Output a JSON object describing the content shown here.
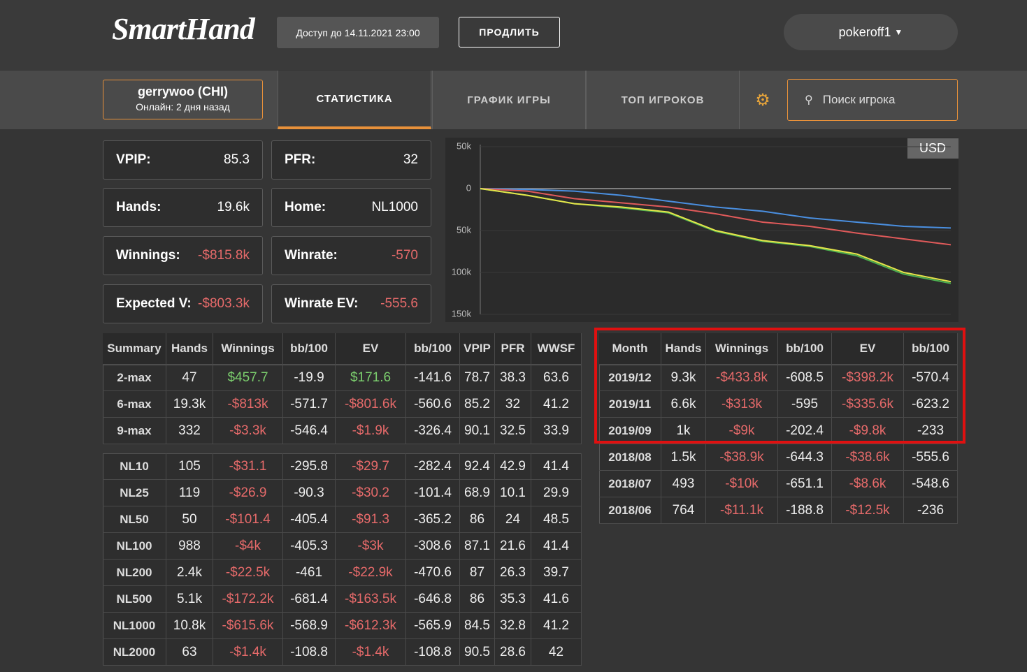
{
  "header": {
    "logo": "SmartHand",
    "access": "Доступ до 14.11.2021 23:00",
    "renew": "ПРОДЛИТЬ",
    "user": "pokeroff1"
  },
  "player": {
    "name": "gerrywoo (CHI)",
    "online": "Онлайн: 2 дня назад"
  },
  "tabs": [
    "СТАТИСТИКА",
    "ГРАФИК ИГРЫ",
    "ТОП ИГРОКОВ"
  ],
  "search": "Поиск игрока",
  "stats": [
    [
      {
        "label": "VPIP:",
        "value": "85.3"
      },
      {
        "label": "PFR:",
        "value": "32"
      }
    ],
    [
      {
        "label": "Hands:",
        "value": "19.6k"
      },
      {
        "label": "Home:",
        "value": "NL1000"
      }
    ],
    [
      {
        "label": "Winnings:",
        "value": "-$815.8k"
      },
      {
        "label": "Winrate:",
        "value": "-570"
      }
    ],
    [
      {
        "label": "Expected V:",
        "value": "-$803.3k"
      },
      {
        "label": "Winrate EV:",
        "value": "-555.6"
      }
    ]
  ],
  "chart_data": {
    "type": "line",
    "currency": "USD",
    "categories": [
      null,
      null,
      null,
      null,
      null,
      null,
      null,
      null,
      null,
      null,
      null
    ],
    "ylim": [
      50000,
      -150000
    ],
    "yticks": [
      {
        "value": 50000,
        "label": "50k"
      },
      0,
      {
        "value": -50000,
        "label": "50k"
      },
      {
        "value": -100000,
        "label": "100k"
      },
      {
        "value": -150000,
        "label": "150k"
      }
    ],
    "series": [
      {
        "color": "#4a8fe0",
        "values": [
          0,
          -1000,
          -3000,
          -8000,
          -15000,
          -22000,
          -27000,
          -35000,
          -40000,
          -45000,
          -47000
        ]
      },
      {
        "color": "#e05a5a",
        "values": [
          0,
          -3000,
          -12000,
          -17000,
          -22000,
          -30000,
          -40000,
          -45000,
          -53000,
          -60000,
          -67000
        ]
      },
      {
        "color": "#4caf50",
        "values": [
          0,
          -8000,
          -18000,
          -23000,
          -29000,
          -51000,
          -63000,
          -69000,
          -80000,
          -102000,
          -113000
        ]
      },
      {
        "color": "#e6e64a",
        "values": [
          0,
          -8000,
          -18000,
          -22000,
          -28000,
          -50000,
          -62000,
          -68000,
          -78000,
          -100000,
          -111000
        ]
      }
    ]
  },
  "summary": {
    "header": [
      "Summary",
      "Hands",
      "Winnings",
      "bb/100",
      "EV",
      "bb/100",
      "VPIP",
      "PFR",
      "WWSF"
    ],
    "groups": [
      [
        [
          "2-max",
          "47",
          "$457.7",
          "-19.9",
          "$171.6",
          "-141.6",
          "78.7",
          "38.3",
          "63.6"
        ],
        [
          "6-max",
          "19.3k",
          "-$813k",
          "-571.7",
          "-$801.6k",
          "-560.6",
          "85.2",
          "32",
          "41.2"
        ],
        [
          "9-max",
          "332",
          "-$3.3k",
          "-546.4",
          "-$1.9k",
          "-326.4",
          "90.1",
          "32.5",
          "33.9"
        ]
      ],
      [
        [
          "NL10",
          "105",
          "-$31.1",
          "-295.8",
          "-$29.7",
          "-282.4",
          "92.4",
          "42.9",
          "41.4"
        ],
        [
          "NL25",
          "119",
          "-$26.9",
          "-90.3",
          "-$30.2",
          "-101.4",
          "68.9",
          "10.1",
          "29.9"
        ],
        [
          "NL50",
          "50",
          "-$101.4",
          "-405.4",
          "-$91.3",
          "-365.2",
          "86",
          "24",
          "48.5"
        ],
        [
          "NL100",
          "988",
          "-$4k",
          "-405.3",
          "-$3k",
          "-308.6",
          "87.1",
          "21.6",
          "41.4"
        ],
        [
          "NL200",
          "2.4k",
          "-$22.5k",
          "-461",
          "-$22.9k",
          "-470.6",
          "87",
          "26.3",
          "39.7"
        ],
        [
          "NL500",
          "5.1k",
          "-$172.2k",
          "-681.4",
          "-$163.5k",
          "-646.8",
          "86",
          "35.3",
          "41.6"
        ],
        [
          "NL1000",
          "10.8k",
          "-$615.6k",
          "-568.9",
          "-$612.3k",
          "-565.9",
          "84.5",
          "32.8",
          "41.2"
        ],
        [
          "NL2000",
          "63",
          "-$1.4k",
          "-108.8",
          "-$1.4k",
          "-108.8",
          "90.5",
          "28.6",
          "42"
        ]
      ]
    ]
  },
  "months": {
    "header": [
      "Month",
      "Hands",
      "Winnings",
      "bb/100",
      "EV",
      "bb/100"
    ],
    "rows": [
      [
        "2019/12",
        "9.3k",
        "-$433.8k",
        "-608.5",
        "-$398.2k",
        "-570.4"
      ],
      [
        "2019/11",
        "6.6k",
        "-$313k",
        "-595",
        "-$335.6k",
        "-623.2"
      ],
      [
        "2019/09",
        "1k",
        "-$9k",
        "-202.4",
        "-$9.8k",
        "-233"
      ],
      [
        "2018/08",
        "1.5k",
        "-$38.9k",
        "-644.3",
        "-$38.6k",
        "-555.6"
      ],
      [
        "2018/07",
        "493",
        "-$10k",
        "-651.1",
        "-$8.6k",
        "-548.6"
      ],
      [
        "2018/06",
        "764",
        "-$11.1k",
        "-188.8",
        "-$12.5k",
        "-236"
      ]
    ]
  }
}
